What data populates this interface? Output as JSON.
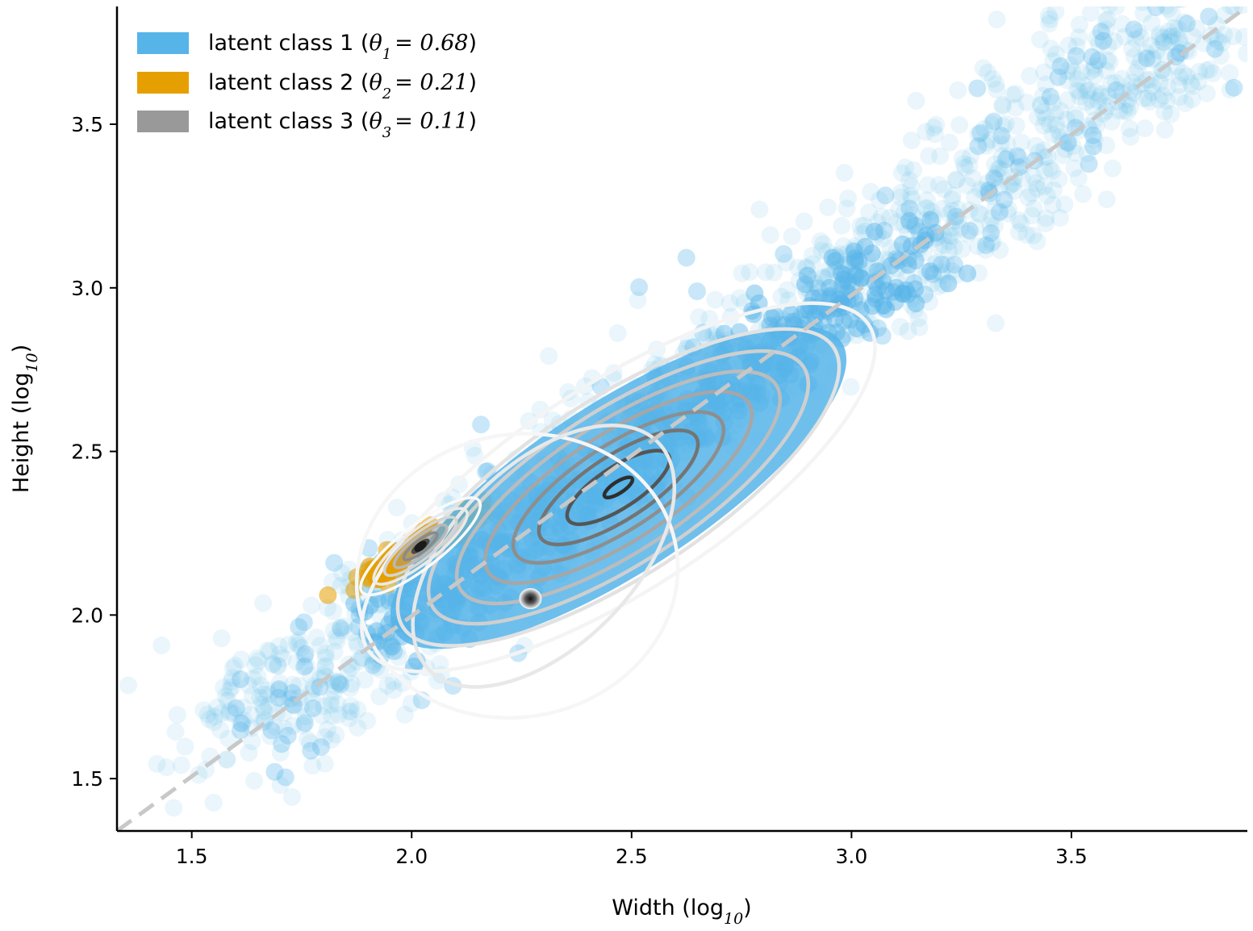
{
  "chart_data": {
    "type": "scatter",
    "title": "",
    "xlabel": "Width (log",
    "xlabel_sub": "10",
    "ylabel": "Height (log",
    "ylabel_sub": "10",
    "label_close": ")",
    "xlim": [
      1.33,
      3.9
    ],
    "ylim": [
      1.34,
      3.86
    ],
    "xticks": [
      1.5,
      2.0,
      2.5,
      3.0,
      3.5
    ],
    "yticks": [
      1.5,
      2.0,
      2.5,
      3.0,
      3.5
    ],
    "xtick_labels": [
      "1.5",
      "2.0",
      "2.5",
      "3.0",
      "3.5"
    ],
    "ytick_labels": [
      "1.5",
      "2.0",
      "2.5",
      "3.0",
      "3.5"
    ],
    "grid": false,
    "legend_position": "top-left",
    "reference_line": {
      "style": "dashed",
      "color": "#c8c8c8",
      "from": [
        1.33,
        1.34
      ],
      "to": [
        3.9,
        3.86
      ]
    },
    "series": [
      {
        "name": "latent class 1",
        "legend_prefix": "latent class 1 (",
        "theta_symbol": "θ",
        "theta_index": "1",
        "theta_value": "= 0.68",
        "legend_suffix": ")",
        "color": "#56b4e9",
        "mean": [
          2.45,
          2.4
        ],
        "sd": [
          0.42,
          0.43
        ],
        "corr": 0.9
      },
      {
        "name": "latent class 2",
        "legend_prefix": "latent class 2 (",
        "theta_symbol": "θ",
        "theta_index": "2",
        "theta_value": "= 0.21",
        "legend_suffix": ")",
        "color": "#e69f00",
        "mean": [
          2.02,
          2.21
        ],
        "sd": [
          0.07,
          0.06
        ],
        "corr": 0.95
      },
      {
        "name": "latent class 3",
        "legend_prefix": "latent class 3 (",
        "theta_symbol": "θ",
        "theta_index": "3",
        "theta_value": "= 0.11",
        "legend_suffix": ")",
        "color": "#999999",
        "mean": [
          2.27,
          2.05
        ],
        "sd": [
          0.18,
          0.3
        ],
        "corr": 0.1
      }
    ],
    "contours": [
      {
        "center": [
          2.47,
          2.39
        ],
        "rx": 0.16,
        "ry": 0.26,
        "angle": 0.2,
        "strength": 1.0
      },
      {
        "center": [
          2.02,
          2.21
        ],
        "rx": 0.13,
        "ry": 0.25,
        "angle": 0.15,
        "strength": 1.0
      },
      {
        "center": [
          2.27,
          2.05
        ],
        "rx": 0.04,
        "ry": 0.05,
        "angle": 0.0,
        "strength": 1.0
      }
    ]
  }
}
